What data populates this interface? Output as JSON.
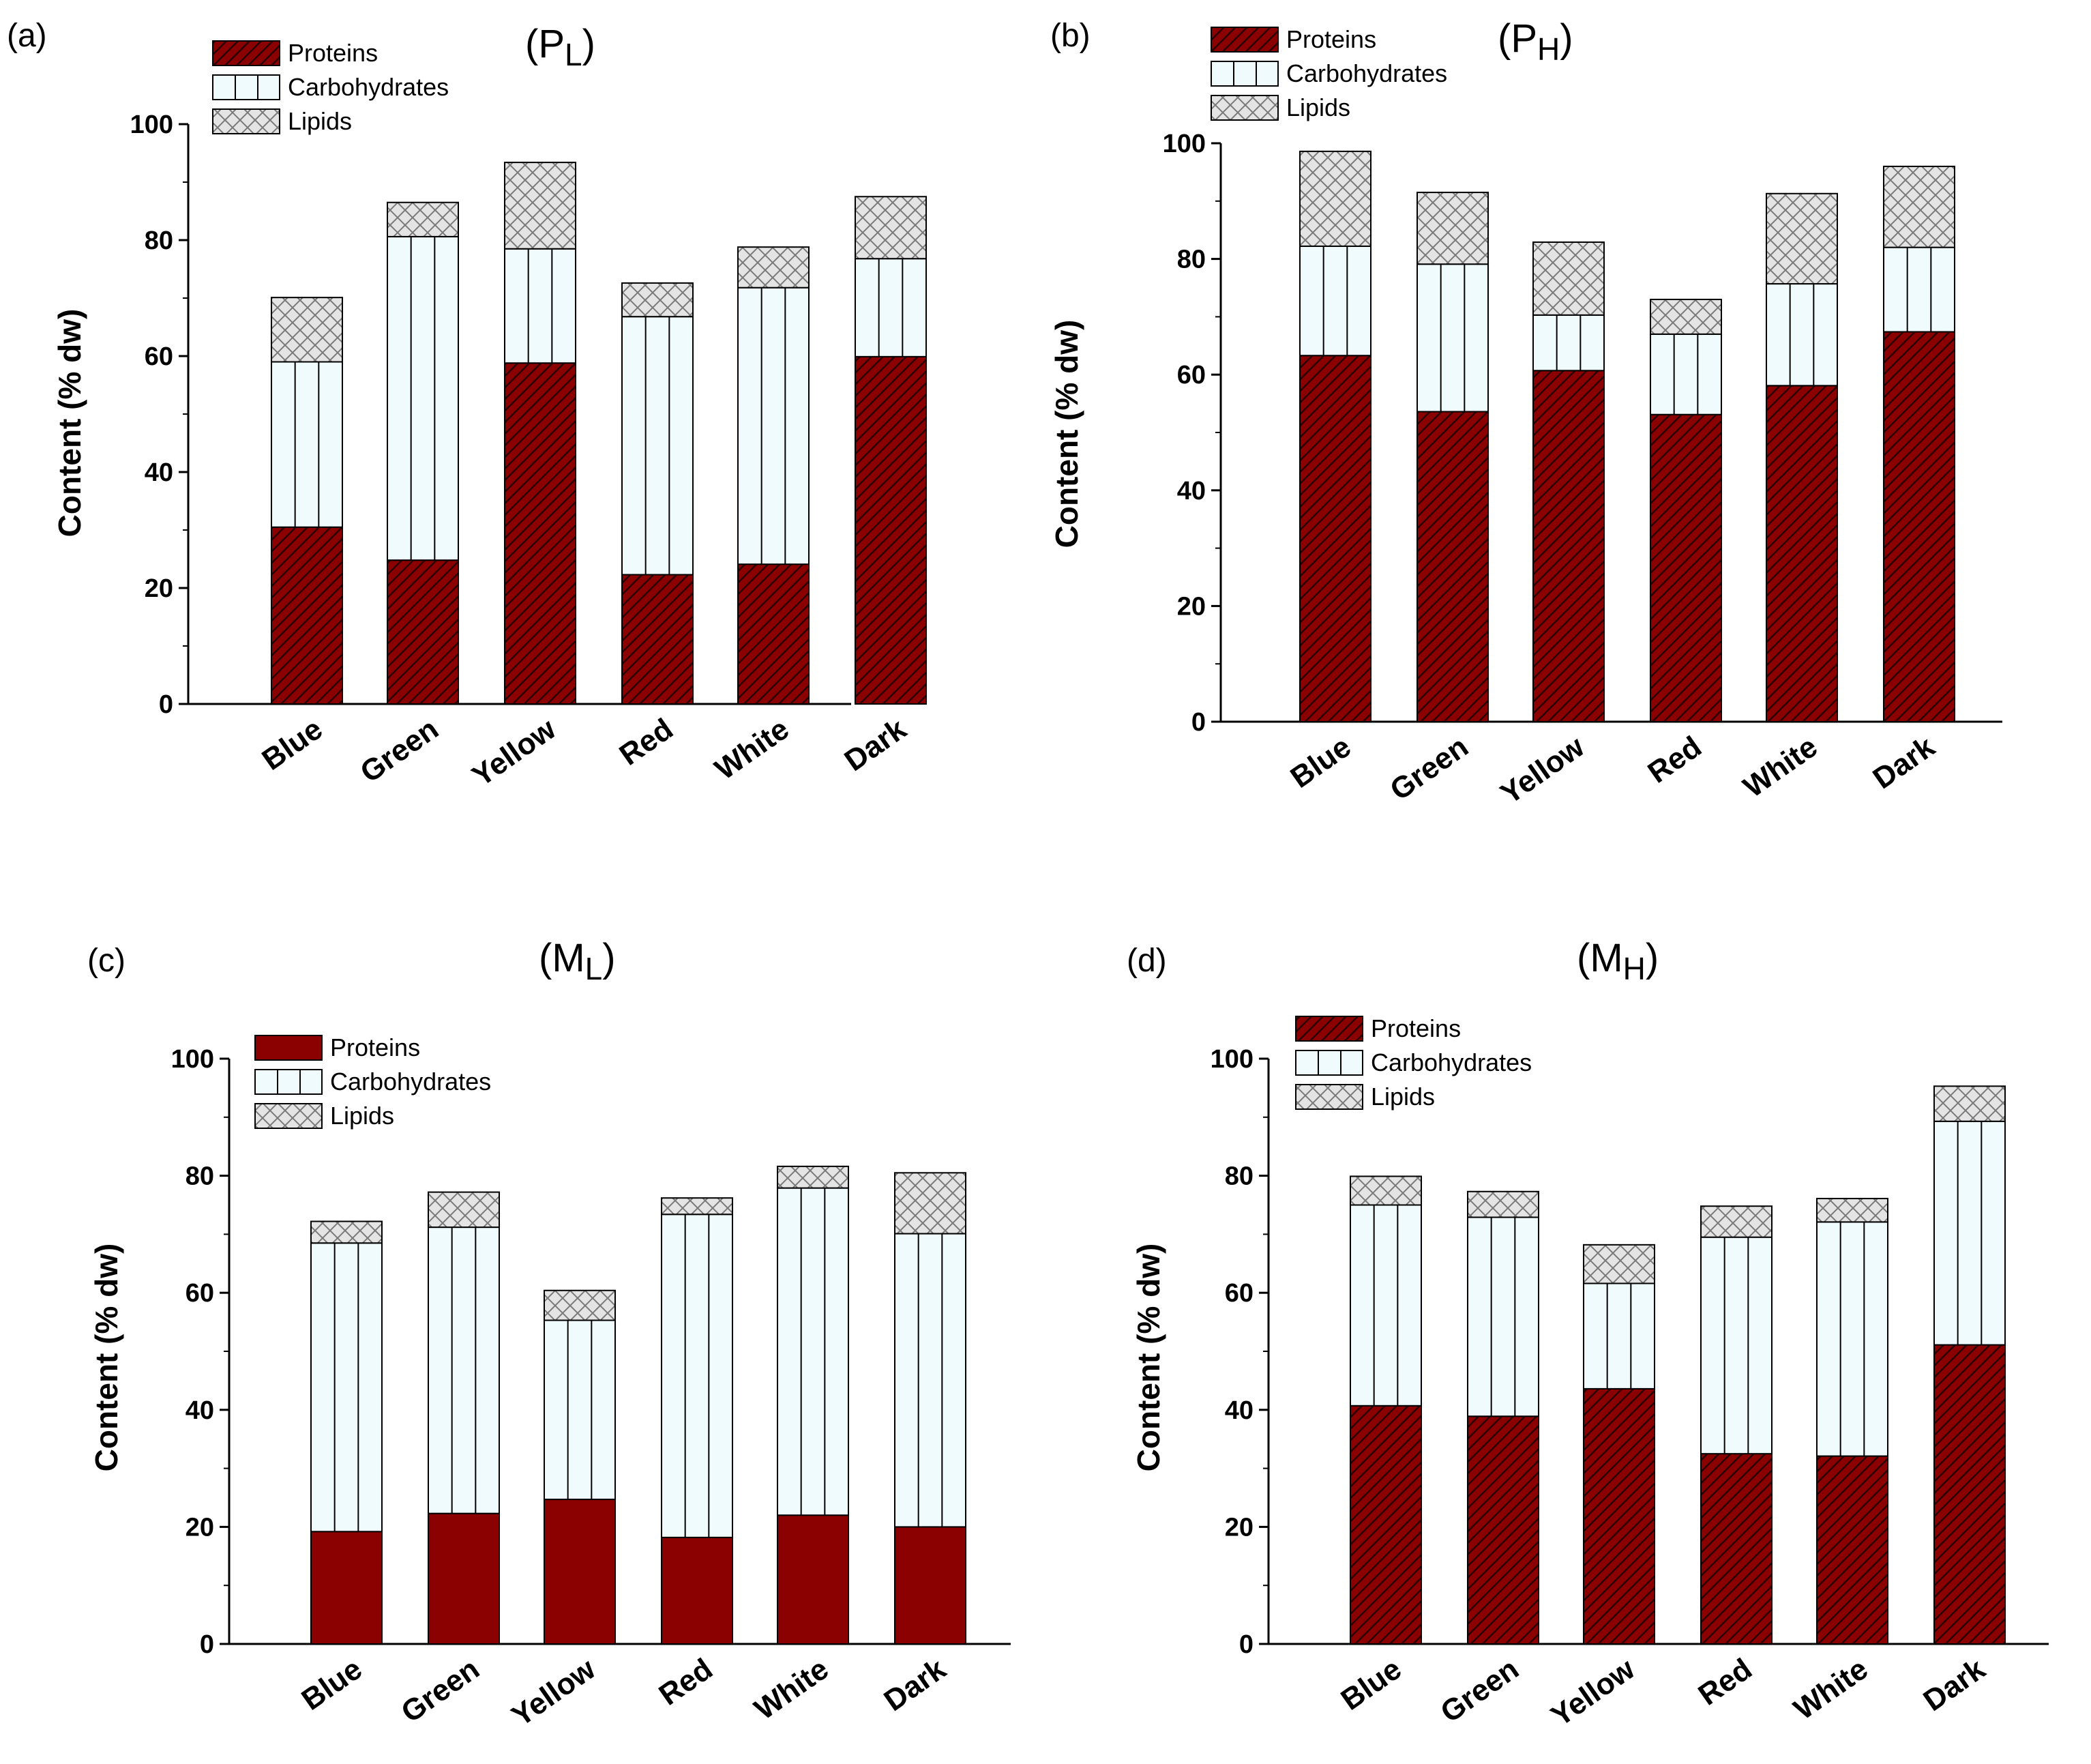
{
  "colors": {
    "proteins": "#8b0000",
    "proteins_hatch": "#2a0000",
    "carbohydrates": "#effbfd",
    "lipids": "#e4e4e4",
    "lipids_hatch": "#7a7a7a",
    "axis": "#000000"
  },
  "chart_data": [
    {
      "panel_letter": "(a)",
      "title_main": "P",
      "title_sub": "L",
      "type": "bar",
      "stacked": true,
      "ylabel": "Content (% dw)",
      "ylim": [
        0,
        100
      ],
      "yticks": [
        0,
        20,
        40,
        60,
        80,
        100
      ],
      "grid": false,
      "legend_position": "top-left",
      "legend": [
        "Proteins",
        "Carbohydrates",
        "Lipids"
      ],
      "categories": [
        "Blue",
        "Green",
        "Yellow",
        "Red",
        "White",
        "Dark"
      ],
      "series": [
        {
          "name": "Proteins",
          "values": [
            30.5,
            24.8,
            58.8,
            22.3,
            24.1,
            59.9
          ]
        },
        {
          "name": "Carbohydrates",
          "values": [
            28.5,
            55.8,
            19.7,
            44.5,
            47.7,
            16.9
          ]
        },
        {
          "name": "Lipids",
          "values": [
            11.1,
            5.9,
            14.9,
            5.8,
            7.0,
            10.7
          ]
        }
      ]
    },
    {
      "panel_letter": "(b)",
      "title_main": "P",
      "title_sub": "H",
      "type": "bar",
      "stacked": true,
      "ylabel": "Content (% dw)",
      "ylim": [
        0,
        100
      ],
      "yticks": [
        0,
        20,
        40,
        60,
        80,
        100
      ],
      "grid": false,
      "legend_position": "top-left",
      "legend": [
        "Proteins",
        "Carbohydrates",
        "Lipids"
      ],
      "categories": [
        "Blue",
        "Green",
        "Yellow",
        "Red",
        "White",
        "Dark"
      ],
      "series": [
        {
          "name": "Proteins",
          "values": [
            63.3,
            53.6,
            60.7,
            53.1,
            58.1,
            67.4
          ]
        },
        {
          "name": "Carbohydrates",
          "values": [
            18.9,
            25.5,
            9.6,
            13.9,
            17.6,
            14.6
          ]
        },
        {
          "name": "Lipids",
          "values": [
            16.4,
            12.4,
            12.6,
            6.0,
            15.6,
            14.0
          ]
        }
      ]
    },
    {
      "panel_letter": "(c)",
      "title_main": "M",
      "title_sub": "L",
      "type": "bar",
      "stacked": true,
      "ylabel": "Content (% dw)",
      "ylim": [
        0,
        100
      ],
      "yticks": [
        0,
        20,
        40,
        60,
        80,
        100
      ],
      "grid": false,
      "legend_position": "top-left",
      "legend": [
        "Proteins",
        "Carbohydrates",
        "Lipids"
      ],
      "categories": [
        "Blue",
        "Green",
        "Yellow",
        "Red",
        "White",
        "Dark"
      ],
      "series": [
        {
          "name": "Proteins",
          "values": [
            19.2,
            22.3,
            24.7,
            18.2,
            22.0,
            20.0
          ]
        },
        {
          "name": "Carbohydrates",
          "values": [
            49.3,
            48.9,
            30.6,
            55.2,
            55.9,
            50.1
          ]
        },
        {
          "name": "Lipids",
          "values": [
            3.7,
            6.0,
            5.1,
            2.8,
            3.7,
            10.4
          ]
        }
      ]
    },
    {
      "panel_letter": "(d)",
      "title_main": "M",
      "title_sub": "H",
      "type": "bar",
      "stacked": true,
      "ylabel": "Content (% dw)",
      "ylim": [
        0,
        100
      ],
      "yticks": [
        0,
        20,
        40,
        60,
        80,
        100
      ],
      "grid": false,
      "legend_position": "top-left",
      "legend": [
        "Proteins",
        "Carbohydrates",
        "Lipids"
      ],
      "categories": [
        "Blue",
        "Green",
        "Yellow",
        "Red",
        "White",
        "Dark"
      ],
      "series": [
        {
          "name": "Proteins",
          "values": [
            40.7,
            38.9,
            43.6,
            32.5,
            32.1,
            51.1
          ]
        },
        {
          "name": "Carbohydrates",
          "values": [
            34.3,
            34.0,
            18.0,
            37.0,
            40.0,
            38.2
          ]
        },
        {
          "name": "Lipids",
          "values": [
            4.9,
            4.4,
            6.6,
            5.3,
            4.0,
            6.0
          ]
        }
      ]
    }
  ]
}
